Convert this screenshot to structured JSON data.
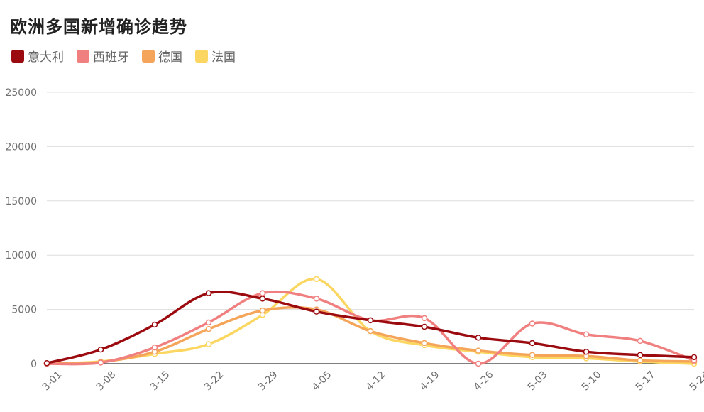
{
  "chart_data": {
    "type": "line",
    "title": "欧洲多国新增确诊趋势",
    "ylim": [
      0,
      25000
    ],
    "yticks": [
      0,
      5000,
      10000,
      15000,
      20000,
      25000
    ],
    "xticks": [
      "3-01",
      "3-08",
      "3-15",
      "3-22",
      "3-29",
      "4-05",
      "4-12",
      "4-19",
      "4-26",
      "5-03",
      "5-10",
      "5-17",
      "5-24"
    ],
    "legend_position": "top-left",
    "grid": true,
    "series": [
      {
        "name": "意大利",
        "color": "#9b0a0e",
        "values": [
          [
            0,
            50
          ],
          [
            7,
            1300
          ],
          [
            14,
            3600
          ],
          [
            21,
            6500
          ],
          [
            28,
            6000
          ],
          [
            35,
            4800
          ],
          [
            42,
            4000
          ],
          [
            49,
            3400
          ],
          [
            56,
            2400
          ],
          [
            63,
            1900
          ],
          [
            70,
            1100
          ],
          [
            77,
            800
          ],
          [
            84,
            600
          ]
        ]
      },
      {
        "name": "西班牙",
        "color": "#f08080",
        "values": [
          [
            0,
            0
          ],
          [
            7,
            100
          ],
          [
            14,
            1500
          ],
          [
            21,
            3800
          ],
          [
            28,
            6500
          ],
          [
            35,
            6000
          ],
          [
            42,
            4000
          ],
          [
            49,
            4200
          ],
          [
            56,
            0
          ],
          [
            63,
            3700
          ],
          [
            70,
            2700
          ],
          [
            77,
            2100
          ],
          [
            84,
            300
          ]
        ]
      },
      {
        "name": "德国",
        "color": "#f5a55a",
        "values": [
          [
            0,
            0
          ],
          [
            7,
            150
          ],
          [
            14,
            1100
          ],
          [
            21,
            3200
          ],
          [
            28,
            4900
          ],
          [
            35,
            5000
          ],
          [
            42,
            3000
          ],
          [
            49,
            1900
          ],
          [
            56,
            1200
          ],
          [
            63,
            800
          ],
          [
            70,
            700
          ],
          [
            77,
            300
          ],
          [
            84,
            200
          ]
        ]
      },
      {
        "name": "法国",
        "color": "#fbd660",
        "values": [
          [
            0,
            0
          ],
          [
            7,
            200
          ],
          [
            14,
            900
          ],
          [
            21,
            1800
          ],
          [
            28,
            4500
          ],
          [
            35,
            7800
          ],
          [
            42,
            3000
          ],
          [
            49,
            1700
          ],
          [
            56,
            1100
          ],
          [
            63,
            600
          ],
          [
            70,
            500
          ],
          [
            77,
            200
          ],
          [
            84,
            0
          ]
        ]
      }
    ]
  }
}
